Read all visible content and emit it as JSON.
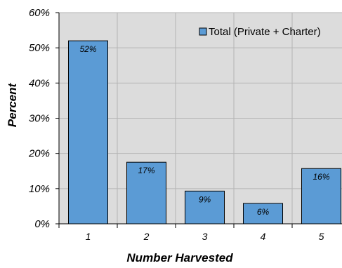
{
  "chart_data": {
    "type": "bar",
    "categories": [
      "1",
      "2",
      "3",
      "4",
      "5"
    ],
    "series": [
      {
        "name": "Total (Private + Charter)",
        "values": [
          52,
          17.5,
          9.3,
          5.8,
          15.7
        ],
        "data_labels": [
          "52%",
          "17%",
          "9%",
          "6%",
          "16%"
        ],
        "color": "#5b9bd5"
      }
    ],
    "xlabel": "Number Harvested",
    "ylabel": "Percent",
    "ylim": [
      0,
      60
    ],
    "yticks": [
      0,
      10,
      20,
      30,
      40,
      50,
      60
    ],
    "ytick_labels": [
      "0%",
      "10%",
      "20%",
      "30%",
      "40%",
      "50%",
      "60%"
    ],
    "grid": true,
    "legend_position": "top-right",
    "plot_background": "#dcdcdc",
    "grid_color": "#b4b4b4"
  }
}
